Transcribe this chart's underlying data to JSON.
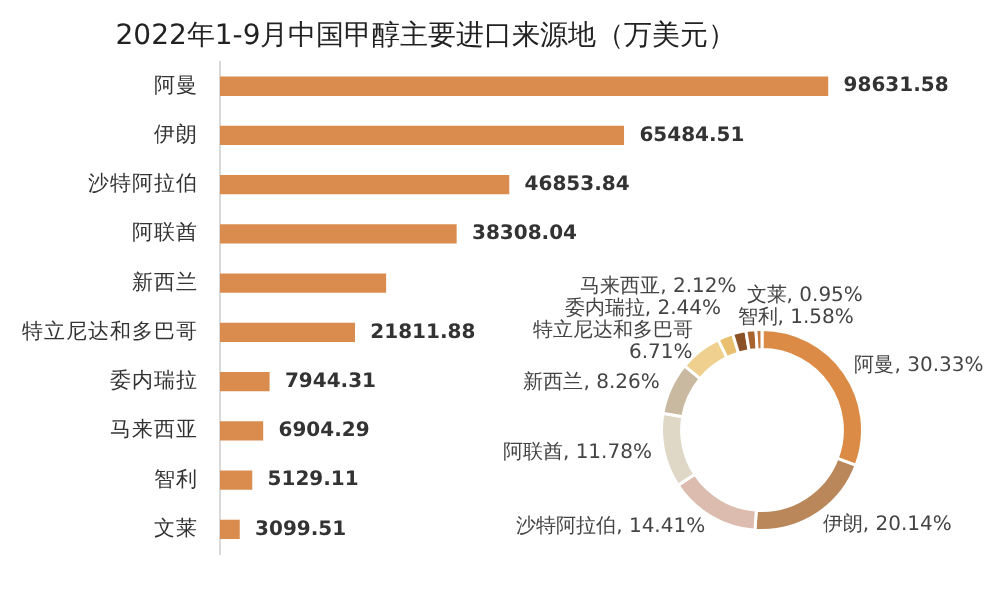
{
  "chart_data": [
    {
      "type": "bar",
      "title": "2022年1-9月中国甲醇主要进口来源地（万美元）",
      "orientation": "horizontal",
      "categories": [
        "阿曼",
        "伊朗",
        "沙特阿拉伯",
        "阿联酋",
        "新西兰",
        "特立尼达和多巴哥",
        "委内瑞拉",
        "马来西亚",
        "智利",
        "文莱"
      ],
      "values": [
        98631.58,
        65484.51,
        46853.84,
        38308.04,
        26860,
        21811.88,
        7944.31,
        6904.29,
        5129.11,
        3099.51
      ],
      "value_labels": [
        "98631.58",
        "65484.51",
        "46853.84",
        "38308.04",
        null,
        "21811.88",
        "7944.31",
        "6904.29",
        "5129.11",
        "3099.51"
      ],
      "color": "#d98c4e",
      "legend": false
    },
    {
      "type": "donut",
      "categories": [
        "阿曼",
        "伊朗",
        "沙特阿拉伯",
        "阿联酋",
        "新西兰",
        "特立尼达和多巴哥",
        "委内瑞拉",
        "马来西亚",
        "智利",
        "文莱"
      ],
      "values": [
        30.33,
        20.14,
        14.41,
        11.78,
        8.26,
        6.71,
        2.44,
        2.12,
        1.58,
        0.95
      ],
      "value_labels": [
        "30.33%",
        "20.14%",
        "14.41%",
        "11.78%",
        "8.26%",
        "6.71%",
        "2.44%",
        "2.12%",
        "1.58%",
        "0.95%"
      ],
      "colors": [
        "#db8b45",
        "#b9875a",
        "#dbbcae",
        "#e0d8c6",
        "#c9b9a0",
        "#f0d08e",
        "#e8c070",
        "#8a5226",
        "#a8642e",
        "#c4783a"
      ],
      "legend": false
    }
  ]
}
